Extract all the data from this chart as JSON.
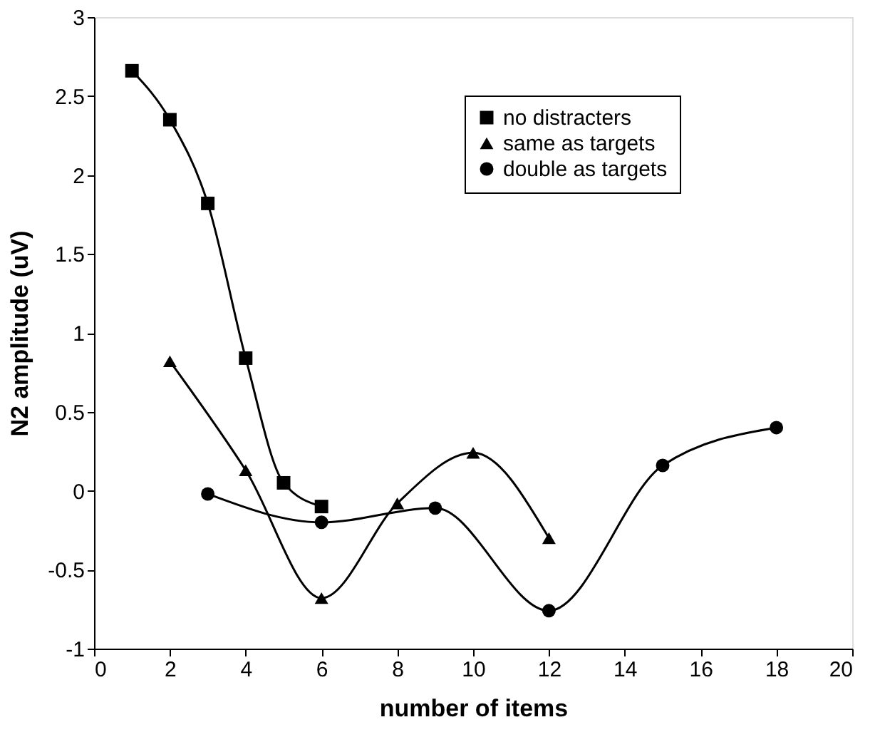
{
  "chart_data": {
    "type": "line",
    "xlabel": "number of items",
    "ylabel": "N2 amplitude (uV)",
    "xlim": [
      0,
      20
    ],
    "xticks": [
      0,
      2,
      4,
      6,
      8,
      10,
      12,
      14,
      16,
      18,
      20
    ],
    "ylim": [
      -1,
      3
    ],
    "yticks": [
      -1,
      -0.5,
      0,
      0.5,
      1,
      1.5,
      2,
      2.5,
      3
    ],
    "grid": false,
    "legend": "top right",
    "line_style": "solid",
    "series": [
      {
        "name": "no distracters",
        "color": "#000000",
        "marker": "square",
        "x": [
          1,
          2,
          3,
          4,
          5,
          6
        ],
        "values": [
          2.66,
          2.35,
          1.82,
          0.84,
          0.05,
          -0.1
        ]
      },
      {
        "name": "same as targets",
        "color": "#000000",
        "marker": "triangle",
        "x": [
          2,
          4,
          6,
          8,
          10,
          12
        ],
        "values": [
          0.82,
          0.13,
          -0.68,
          -0.08,
          0.24,
          -0.3
        ]
      },
      {
        "name": "double as targets",
        "color": "#000000",
        "marker": "circle",
        "x": [
          3,
          6,
          9,
          12,
          15,
          18
        ],
        "values": [
          -0.02,
          -0.2,
          -0.11,
          -0.76,
          0.16,
          0.4
        ]
      }
    ]
  }
}
